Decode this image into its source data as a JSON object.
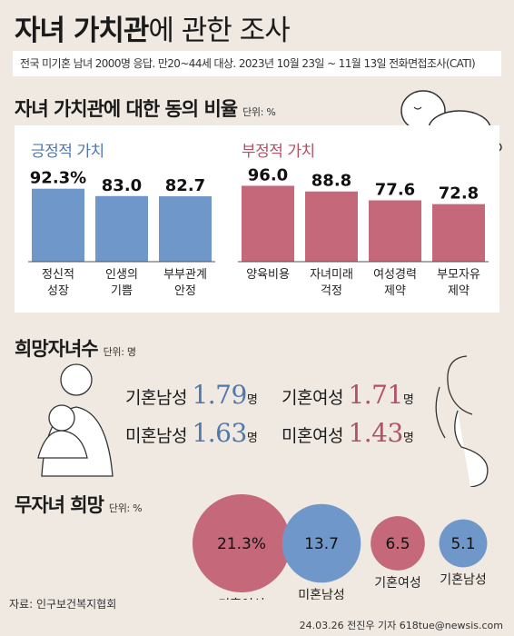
{
  "title": {
    "bold": "자녀 가치관",
    "rest": "에 관한 조사"
  },
  "survey_note": "전국 미기혼 남녀 2000명 응답. 만20~44세 대상. 2023년 10월 23일 ~ 11월 13일 전화면접조사(CATI)",
  "section1": {
    "title": "자녀 가치관에 대한 동의 비율",
    "unit": "단위: %"
  },
  "section2": {
    "title": "희망자녀수",
    "unit": "단위: 명"
  },
  "section3": {
    "title": "무자녀 희망",
    "unit": "단위: %"
  },
  "colors": {
    "positive": "#6f97c9",
    "negative": "#c4687a",
    "bubble_pink": "#c4687a",
    "bubble_blue": "#6f97c9"
  },
  "chart_data": [
    {
      "type": "bar",
      "title": "자녀 가치관에 대한 동의 비율",
      "unit": "단위: %",
      "groups": [
        {
          "name": "긍정적 가치",
          "categories": [
            [
              "정신적",
              "성장"
            ],
            [
              "인생의",
              "기쁨"
            ],
            [
              "부부관계",
              "안정"
            ]
          ],
          "values": [
            92.3,
            83.0,
            82.7
          ],
          "value_labels": [
            "92.3%",
            "83.0",
            "82.7"
          ]
        },
        {
          "name": "부정적 가치",
          "categories": [
            [
              "양육비용"
            ],
            [
              "자녀미래",
              "걱정"
            ],
            [
              "여성경력",
              "제약"
            ],
            [
              "부모자유",
              "제약"
            ]
          ],
          "values": [
            96.0,
            88.8,
            77.6,
            72.8
          ],
          "value_labels": [
            "96.0",
            "88.8",
            "77.6",
            "72.8"
          ]
        }
      ]
    },
    {
      "type": "table",
      "title": "희망자녀수",
      "unit": "단위: 명",
      "rows": [
        {
          "label": "기혼남성",
          "value": "1.79",
          "suffix": "명"
        },
        {
          "label": "기혼여성",
          "value": "1.71",
          "suffix": "명"
        },
        {
          "label": "미혼남성",
          "value": "1.63",
          "suffix": "명"
        },
        {
          "label": "미혼여성",
          "value": "1.43",
          "suffix": "명"
        }
      ]
    },
    {
      "type": "bubble",
      "title": "무자녀 희망",
      "unit": "단위: %",
      "categories": [
        "미혼여성",
        "미혼남성",
        "기혼여성",
        "기혼남성"
      ],
      "values": [
        21.3,
        13.7,
        6.5,
        5.1
      ],
      "value_labels": [
        "21.3%",
        "13.7",
        "6.5",
        "5.1"
      ]
    }
  ],
  "source": "자료: 인구보건복지협회",
  "credit": "24.03.26 전진우 기자 618tue@newsis.com"
}
